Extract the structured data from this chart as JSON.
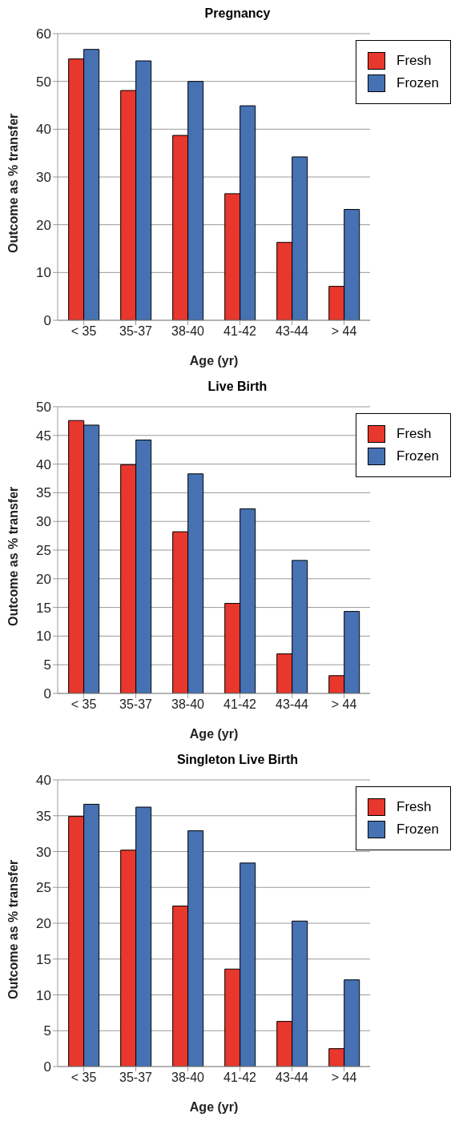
{
  "chart_data": [
    {
      "type": "bar",
      "title": "Pregnancy",
      "xlabel": "Age (yr)",
      "ylabel": "Outcome as % transfer",
      "categories": [
        "< 35",
        "35-37",
        "38-40",
        "41-42",
        "43-44",
        "> 44"
      ],
      "series": [
        {
          "name": "Fresh",
          "color": "#e8372c",
          "values": [
            54.7,
            48.1,
            38.7,
            26.5,
            16.3,
            7.1
          ]
        },
        {
          "name": "Frozen",
          "color": "#4672b4",
          "values": [
            56.7,
            54.3,
            50.0,
            44.9,
            34.2,
            23.2
          ]
        }
      ],
      "ylim": [
        0,
        60
      ],
      "yticks": [
        0,
        10,
        20,
        30,
        40,
        50,
        60
      ],
      "grid": "y",
      "legend": "top right"
    },
    {
      "type": "bar",
      "title": "Live Birth",
      "xlabel": "Age (yr)",
      "ylabel": "Outcome as % transfer",
      "categories": [
        "< 35",
        "35-37",
        "38-40",
        "41-42",
        "43-44",
        "> 44"
      ],
      "series": [
        {
          "name": "Fresh",
          "color": "#e8372c",
          "values": [
            47.6,
            39.9,
            28.2,
            15.7,
            6.9,
            3.1
          ]
        },
        {
          "name": "Frozen",
          "color": "#4672b4",
          "values": [
            46.8,
            44.2,
            38.3,
            32.2,
            23.2,
            14.3
          ]
        }
      ],
      "ylim": [
        0,
        50
      ],
      "yticks": [
        0,
        5,
        10,
        15,
        20,
        25,
        30,
        35,
        40,
        45,
        50
      ],
      "grid": "y",
      "legend": "top right"
    },
    {
      "type": "bar",
      "title": "Singleton Live Birth",
      "xlabel": "Age (yr)",
      "ylabel": "Outcome as % transfer",
      "categories": [
        "< 35",
        "35-37",
        "38-40",
        "41-42",
        "43-44",
        "> 44"
      ],
      "series": [
        {
          "name": "Fresh",
          "color": "#e8372c",
          "values": [
            34.9,
            30.2,
            22.4,
            13.6,
            6.3,
            2.5
          ]
        },
        {
          "name": "Frozen",
          "color": "#4672b4",
          "values": [
            36.6,
            36.2,
            32.9,
            28.4,
            20.3,
            12.1
          ]
        }
      ],
      "ylim": [
        0,
        40
      ],
      "yticks": [
        0,
        5,
        10,
        15,
        20,
        25,
        30,
        35,
        40
      ],
      "grid": "y",
      "legend": "top right"
    }
  ]
}
